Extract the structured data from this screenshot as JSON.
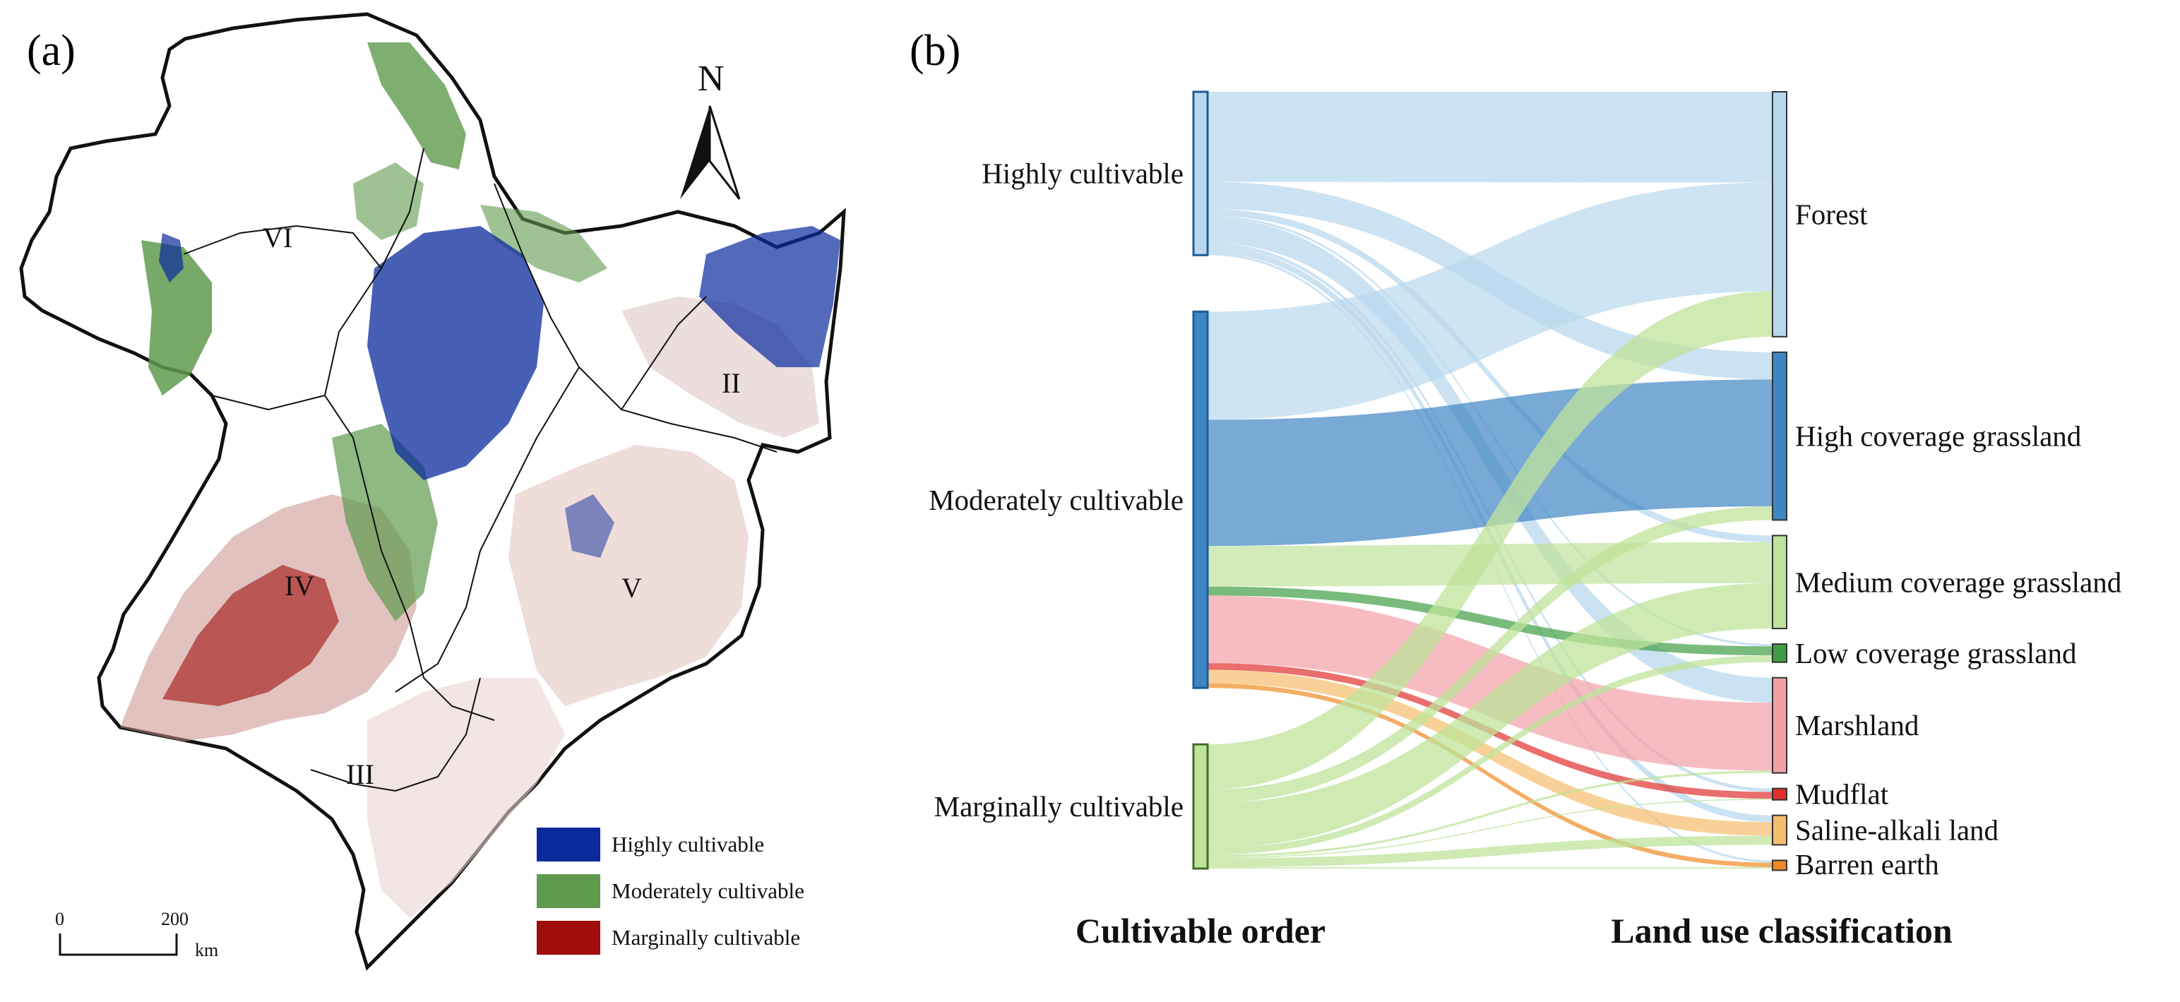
{
  "panels": {
    "a_label": "(a)",
    "b_label": "(b)"
  },
  "map": {
    "north_label": "N",
    "regions": [
      "VI",
      "II",
      "IV",
      "V",
      "III"
    ],
    "legend": [
      {
        "label": "Highly cultivable",
        "color": "#0a2a9c"
      },
      {
        "label": "Moderately cultivable",
        "color": "#5f9a4e"
      },
      {
        "label": "Marginally cultivable",
        "color": "#a00d0d"
      }
    ],
    "scale": {
      "zero": "0",
      "max": "200",
      "unit": "km"
    }
  },
  "chart_data": {
    "type": "sankey",
    "left_title": "Cultivable order",
    "right_title": "Land use classification",
    "sources": [
      {
        "name": "Highly cultivable",
        "color": "#b9d8ee",
        "stroke": "#1f5c94"
      },
      {
        "name": "Moderately cultivable",
        "color": "#3e86c3",
        "stroke": "#1f5c94"
      },
      {
        "name": "Marginally cultivable",
        "color": "#bfe39a",
        "stroke": "#3f6e27"
      }
    ],
    "targets": [
      {
        "name": "Forest",
        "color": "#b9d8ee"
      },
      {
        "name": "High coverage grassland",
        "color": "#3e86c3"
      },
      {
        "name": "Medium coverage grassland",
        "color": "#bfe39a"
      },
      {
        "name": "Low coverage grassland",
        "color": "#3f9e44"
      },
      {
        "name": "Marshland",
        "color": "#f4a0a6"
      },
      {
        "name": "Mudflat",
        "color": "#e0302e"
      },
      {
        "name": "Saline-alkali land",
        "color": "#f6bd6c"
      },
      {
        "name": "Barren earth",
        "color": "#f08a24"
      }
    ],
    "links": [
      {
        "source": 0,
        "target": 0,
        "value": 40
      },
      {
        "source": 0,
        "target": 1,
        "value": 12
      },
      {
        "source": 0,
        "target": 2,
        "value": 3
      },
      {
        "source": 0,
        "target": 3,
        "value": 1
      },
      {
        "source": 0,
        "target": 4,
        "value": 11
      },
      {
        "source": 0,
        "target": 5,
        "value": 1.5
      },
      {
        "source": 0,
        "target": 6,
        "value": 3
      },
      {
        "source": 0,
        "target": 7,
        "value": 1
      },
      {
        "source": 1,
        "target": 0,
        "value": 48
      },
      {
        "source": 1,
        "target": 1,
        "value": 56
      },
      {
        "source": 1,
        "target": 2,
        "value": 18
      },
      {
        "source": 1,
        "target": 3,
        "value": 4
      },
      {
        "source": 1,
        "target": 4,
        "value": 30
      },
      {
        "source": 1,
        "target": 5,
        "value": 3
      },
      {
        "source": 1,
        "target": 6,
        "value": 6
      },
      {
        "source": 1,
        "target": 7,
        "value": 2
      },
      {
        "source": 2,
        "target": 0,
        "value": 20
      },
      {
        "source": 2,
        "target": 1,
        "value": 6
      },
      {
        "source": 2,
        "target": 2,
        "value": 20
      },
      {
        "source": 2,
        "target": 3,
        "value": 3
      },
      {
        "source": 2,
        "target": 4,
        "value": 1
      },
      {
        "source": 2,
        "target": 5,
        "value": 0.5
      },
      {
        "source": 2,
        "target": 6,
        "value": 4
      },
      {
        "source": 2,
        "target": 7,
        "value": 0.6
      }
    ]
  }
}
